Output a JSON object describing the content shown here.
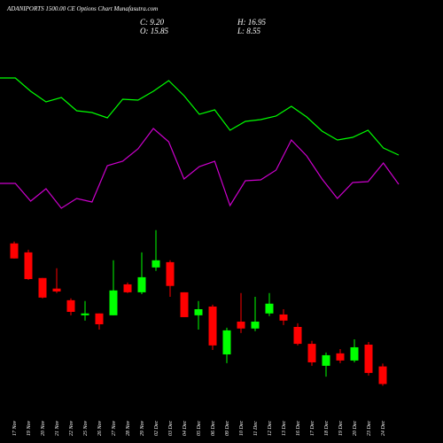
{
  "chart_data": {
    "type": "candlestick",
    "title": "ADANIPORTS 1500.00 CE Options Chart Munafasutra.com",
    "ohlc_labels": [
      "C: 9.20",
      "H: 16.95",
      "O: 15.85",
      "L: 8.55"
    ],
    "categories": [
      "17 Nov",
      "19 Nov",
      "20 Nov",
      "21 Nov",
      "22 Nov",
      "25 Nov",
      "26 Nov",
      "27 Nov",
      "28 Nov",
      "29 Nov",
      "02 Dec",
      "03 Dec",
      "04 Dec",
      "05 Dec",
      "06 Dec",
      "09 Dec",
      "10 Dec",
      "11 Dec",
      "12 Dec",
      "13 Dec",
      "16 Dec",
      "17 Dec",
      "18 Dec",
      "19 Dec",
      "20 Dec",
      "23 Dec",
      "24 Dec"
    ],
    "open": [
      62.4,
      59.0,
      49.3,
      45.3,
      40.9,
      35.2,
      35.9,
      35.2,
      46.9,
      43.9,
      53.3,
      55.3,
      43.9,
      35.2,
      38.5,
      20.4,
      32.8,
      30.2,
      35.9,
      35.5,
      30.8,
      24.4,
      16.1,
      20.8,
      18.1,
      24.1,
      15.85
    ],
    "high": [
      63.1,
      60.0,
      49.3,
      53.0,
      41.6,
      40.6,
      35.9,
      56.0,
      47.6,
      59.0,
      67.4,
      56.0,
      43.9,
      40.6,
      39.2,
      30.5,
      43.6,
      42.2,
      43.6,
      37.5,
      32.2,
      25.5,
      21.1,
      22.4,
      26.1,
      25.1,
      16.95
    ],
    "low": [
      56.7,
      48.6,
      41.6,
      43.6,
      35.2,
      33.2,
      29.8,
      35.2,
      43.6,
      43.2,
      52.0,
      42.2,
      34.5,
      29.8,
      22.1,
      17.1,
      28.5,
      29.2,
      34.9,
      31.5,
      23.8,
      16.1,
      12.0,
      17.1,
      17.4,
      12.4,
      8.55
    ],
    "close": [
      56.7,
      48.9,
      41.9,
      44.2,
      36.5,
      35.9,
      31.8,
      44.6,
      43.9,
      49.6,
      56.0,
      46.3,
      34.5,
      37.5,
      23.8,
      29.5,
      30.2,
      32.8,
      39.6,
      33.2,
      24.4,
      17.4,
      20.1,
      18.1,
      23.1,
      13.4,
      9.2
    ],
    "up_color": "#00ff00",
    "down_color": "#ff0000",
    "ylim": [
      7,
      68
    ],
    "y2lim": [
      0,
      250
    ],
    "series": [
      {
        "color": "#00ff00",
        "axis": "y2",
        "values": [
          212,
          212,
          197,
          185,
          190,
          175,
          173,
          167,
          188,
          187,
          197,
          209,
          192,
          171,
          176,
          153,
          163,
          165,
          169,
          180,
          168,
          152,
          142,
          145,
          153,
          133,
          125
        ]
      },
      {
        "color": "#cc00cc",
        "axis": "y2",
        "values": [
          93,
          93,
          73,
          87,
          65,
          76,
          72,
          113,
          118,
          132,
          155,
          140,
          98,
          112,
          118,
          68,
          96,
          97,
          108,
          142,
          124,
          98,
          76,
          94,
          95,
          116,
          92
        ]
      }
    ]
  }
}
